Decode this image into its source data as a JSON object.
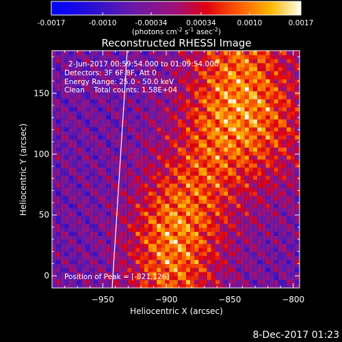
{
  "colorbar": {
    "ticks": [
      "-0.0017",
      "-0.0010",
      "-0.00034",
      "0.00034",
      "0.0010",
      "0.0017"
    ],
    "unit_main": "(photons cm",
    "unit_sup1": "-2",
    "unit_mid": " s",
    "unit_sup2": "-1",
    "unit_end": " asec",
    "unit_sup3": "-2",
    "unit_close": ")"
  },
  "chart_data": {
    "type": "heatmap",
    "title": "Reconstructed RHESSI Image",
    "xlabel": "Heliocentric X (arcsec)",
    "ylabel": "Heliocentric Y (arcsec)",
    "xlim": [
      -990,
      -795
    ],
    "ylim": [
      -10,
      185
    ],
    "x_ticks": [
      -950,
      -900,
      -850,
      -800
    ],
    "x_tick_labels": [
      "−950",
      "−900",
      "−850",
      "−800"
    ],
    "y_ticks": [
      0,
      50,
      100,
      150
    ],
    "y_tick_labels": [
      "0",
      "50",
      "100",
      "150"
    ],
    "color_range": [
      -0.0017,
      0.0017
    ],
    "peak": [
      -821,
      126
    ],
    "annotations": [
      "2-Jun-2017 00:59:54.000 to 01:09:54.000",
      "Detectors: 3F 6F 8F, Att 0",
      "Energy Range: 25.0 - 50.0 keV",
      "Clean    Total counts: 1.58E+04"
    ],
    "peak_label": "Position of Peak = [-821,126]"
  },
  "footer": {
    "timestamp": "8-Dec-2017 01:23"
  }
}
